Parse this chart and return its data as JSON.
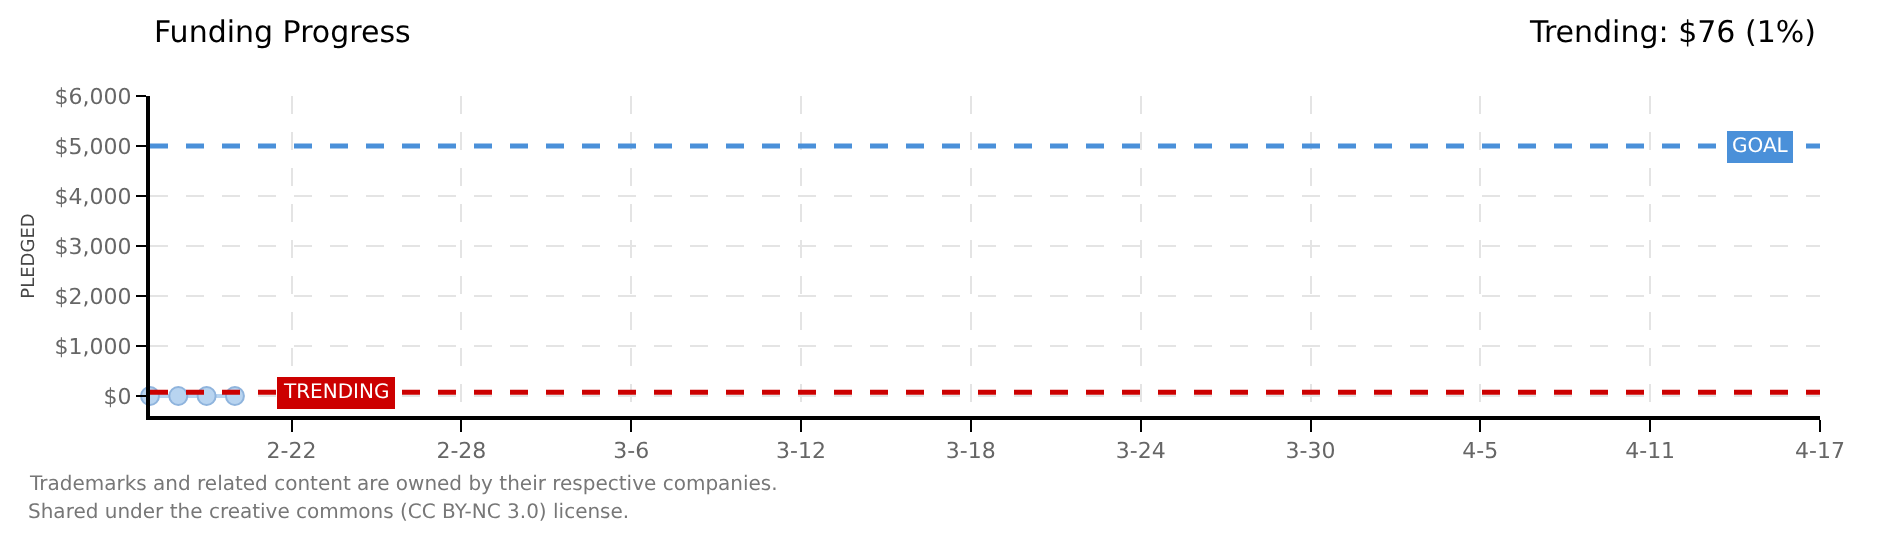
{
  "chart_data": {
    "type": "line",
    "title": "Funding Progress",
    "subtitle": "Trending: $76 (1%)",
    "ylabel": "PLEDGED",
    "x": [
      "--02-17",
      "--02-18",
      "--02-19",
      "--02-20"
    ],
    "series": [
      {
        "color": "#b8d4f0",
        "values": [
          0,
          0,
          0,
          0
        ]
      }
    ],
    "marker": "circle",
    "line_style": "solid",
    "grid": true,
    "xlim": [
      "--02-17",
      "--04-17"
    ],
    "xticks": [
      {
        "value": "--02-22",
        "label": "2-22"
      },
      {
        "value": "--02-28",
        "label": "2-28"
      },
      {
        "value": "--03-06",
        "label": "3-6"
      },
      {
        "value": "--03-12",
        "label": "3-12"
      },
      {
        "value": "--03-18",
        "label": "3-18"
      },
      {
        "value": "--03-24",
        "label": "3-24"
      },
      {
        "value": "--03-30",
        "label": "3-30"
      },
      {
        "value": "--04-05",
        "label": "4-5"
      },
      {
        "value": "--04-11",
        "label": "4-11"
      },
      {
        "value": "--04-17",
        "label": "4-17"
      }
    ],
    "ylim": [
      -400,
      6000
    ],
    "yticks": [
      {
        "value": 0,
        "label": "$0"
      },
      {
        "value": 1000,
        "label": "$1,000"
      },
      {
        "value": 2000,
        "label": "$2,000"
      },
      {
        "value": 3000,
        "label": "$3,000"
      },
      {
        "value": 4000,
        "label": "$4,000"
      },
      {
        "value": 5000,
        "label": "$5,000"
      },
      {
        "value": 6000,
        "label": "$6,000"
      }
    ],
    "ref_lines": [
      {
        "axis": "y",
        "value": 5000,
        "label": "GOAL",
        "color": "#4a90d9",
        "line_style": "dashed"
      },
      {
        "axis": "y",
        "value": 76,
        "label": "TRENDING",
        "color": "#cc0000",
        "line_style": "dashed"
      }
    ],
    "annotations": [
      "Trademarks and related content are owned by their respective companies.",
      "Shared under the creative commons (CC BY-NC 3.0) license."
    ]
  }
}
